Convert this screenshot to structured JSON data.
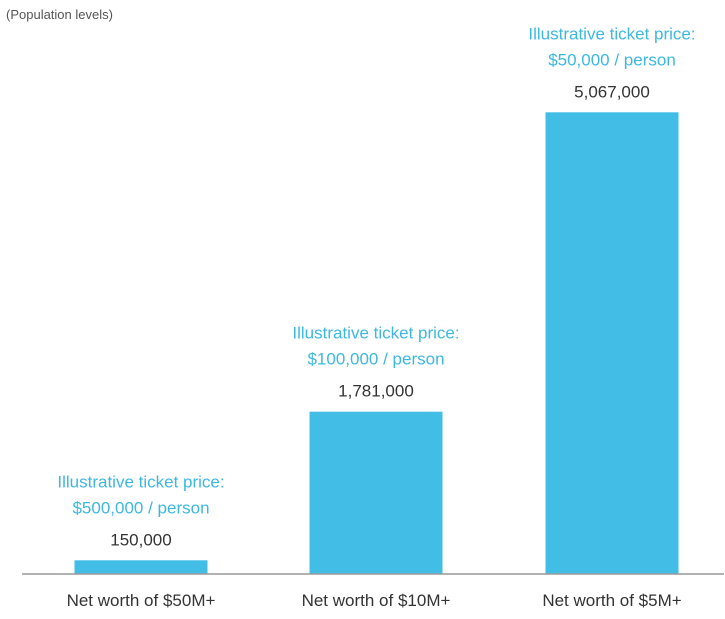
{
  "chart_data": {
    "type": "bar",
    "title": "",
    "subtitle": "(Population levels)",
    "xlabel": "",
    "ylabel": "",
    "ylim": [
      0,
      5400000
    ],
    "grid": false,
    "legend": "none",
    "categories": [
      "Net worth of $50M+",
      "Net worth of $10M+",
      "Net worth of $5M+"
    ],
    "values": [
      150000,
      1781000,
      5067000
    ],
    "value_labels": [
      "150,000",
      "1,781,000",
      "5,067,000"
    ],
    "annotations": [
      {
        "line1": "Illustrative ticket price:",
        "line2": "$500,000 / person"
      },
      {
        "line1": "Illustrative ticket price:",
        "line2": "$100,000 / person"
      },
      {
        "line1": "Illustrative ticket price:",
        "line2": "$50,000 / person"
      }
    ]
  },
  "colors": {
    "bar": "#41BDE6",
    "annotation": "#3DB8E0",
    "axis": "#999999",
    "text": "#333333"
  }
}
